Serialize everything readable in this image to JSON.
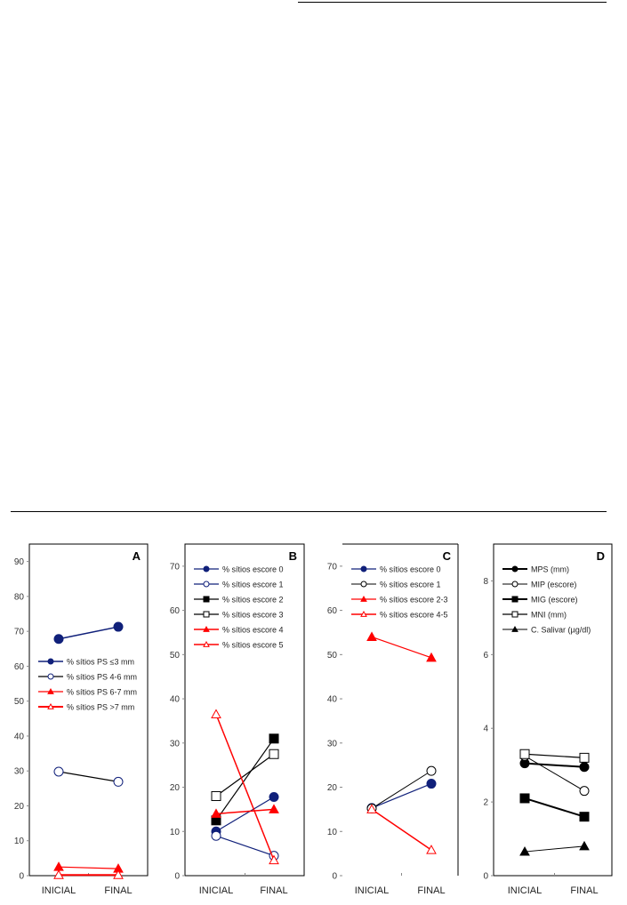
{
  "chart_data": [
    {
      "type": "line",
      "panel_label": "A",
      "categories": [
        "INICIAL",
        "FINAL"
      ],
      "ylim": [
        0,
        95
      ],
      "yticks": [
        0,
        10,
        20,
        30,
        40,
        50,
        60,
        70,
        80,
        90
      ],
      "legend_position": "upper-left",
      "series": [
        {
          "name": "% sítios PS ≤3 mm",
          "values": [
            67.8,
            71.3
          ],
          "color": "#10207a",
          "marker": "circle-filled",
          "width": 1.5
        },
        {
          "name": "% sítios PS 4-6 mm",
          "values": [
            29.8,
            26.9
          ],
          "color": "#000000",
          "marker": "circle-open",
          "marker_color": "#10207a",
          "width": 1.2
        },
        {
          "name": "% sítios PS 6-7 mm",
          "values": [
            2.5,
            2.0
          ],
          "color": "#ff0000",
          "marker": "triangle-filled",
          "width": 1.2
        },
        {
          "name": "% sítios PS >7 mm",
          "values": [
            0.2,
            0.2
          ],
          "color": "#ff0000",
          "marker": "triangle-open",
          "width": 2
        }
      ]
    },
    {
      "type": "line",
      "panel_label": "B",
      "categories": [
        "INICIAL",
        "FINAL"
      ],
      "ylim": [
        0,
        75
      ],
      "yticks": [
        0,
        10,
        20,
        30,
        40,
        50,
        60,
        70
      ],
      "legend_position": "upper-left",
      "series": [
        {
          "name": "% sítios escore 0",
          "values": [
            10,
            17.8
          ],
          "color": "#10207a",
          "marker": "circle-filled",
          "width": 1.2
        },
        {
          "name": "% sítios escore 1",
          "values": [
            9,
            4.5
          ],
          "color": "#10207a",
          "marker": "circle-open",
          "width": 1.2
        },
        {
          "name": "% sítios escore 2",
          "values": [
            12.5,
            31
          ],
          "color": "#000000",
          "marker": "square-filled",
          "width": 1.2
        },
        {
          "name": "% sítios escore 3",
          "values": [
            18,
            27.5
          ],
          "color": "#000000",
          "marker": "square-open",
          "width": 1.2
        },
        {
          "name": "% sítios escore 4",
          "values": [
            14,
            15
          ],
          "color": "#ff0000",
          "marker": "triangle-filled",
          "width": 1.5
        },
        {
          "name": "% sítios escore 5",
          "values": [
            36.5,
            3.5
          ],
          "color": "#ff0000",
          "marker": "triangle-open",
          "width": 1.5
        }
      ]
    },
    {
      "type": "line",
      "panel_label": "C",
      "categories": [
        "INICIAL",
        "FINAL"
      ],
      "ylim": [
        0,
        75
      ],
      "yticks": [
        0,
        10,
        20,
        30,
        40,
        50,
        60,
        70
      ],
      "legend_position": "upper-left",
      "series": [
        {
          "name": "% sítios escore 0",
          "values": [
            15.3,
            20.8
          ],
          "color": "#10207a",
          "marker": "circle-filled",
          "width": 1.2
        },
        {
          "name": "% sítios escore 1",
          "values": [
            15.2,
            23.7
          ],
          "color": "#000000",
          "marker": "circle-open",
          "width": 1
        },
        {
          "name": "% sítios escore 2-3",
          "values": [
            54,
            49.3
          ],
          "color": "#ff0000",
          "marker": "triangle-filled",
          "width": 1.2
        },
        {
          "name": "% sítios escore 4-5",
          "values": [
            15,
            5.8
          ],
          "color": "#ff0000",
          "marker": "triangle-open",
          "width": 1.5
        }
      ]
    },
    {
      "type": "line",
      "panel_label": "D",
      "categories": [
        "INICIAL",
        "FINAL"
      ],
      "ylim": [
        0,
        9
      ],
      "yticks": [
        0,
        2,
        4,
        6,
        8
      ],
      "legend_position": "upper-left",
      "series": [
        {
          "name": "MPS (mm)",
          "values": [
            3.05,
            2.95
          ],
          "color": "#000000",
          "marker": "circle-filled",
          "width": 2
        },
        {
          "name": "MIP (escore)",
          "values": [
            3.25,
            2.3
          ],
          "color": "#000000",
          "marker": "circle-open",
          "width": 1
        },
        {
          "name": "MIG (escore)",
          "values": [
            2.1,
            1.6
          ],
          "color": "#000000",
          "marker": "square-filled",
          "width": 2
        },
        {
          "name": "MNI (mm)",
          "values": [
            3.3,
            3.2
          ],
          "color": "#000000",
          "marker": "square-open",
          "width": 1.2
        },
        {
          "name": "C. Salivar (µg/dl)",
          "values": [
            0.65,
            0.8
          ],
          "color": "#000000",
          "marker": "triangle-filled",
          "width": 1
        }
      ]
    }
  ]
}
